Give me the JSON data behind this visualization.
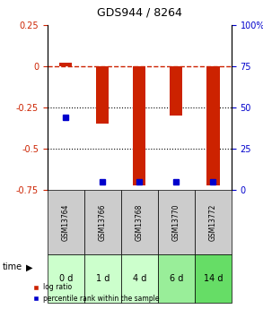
{
  "title": "GDS944 / 8264",
  "samples": [
    "GSM13764",
    "GSM13766",
    "GSM13768",
    "GSM13770",
    "GSM13772"
  ],
  "time_labels": [
    "0 d",
    "1 d",
    "4 d",
    "6 d",
    "14 d"
  ],
  "log_ratio": [
    0.02,
    -0.35,
    -0.72,
    -0.3,
    -0.72
  ],
  "percentile_rank": [
    44,
    5,
    5,
    5,
    5
  ],
  "ylim_left": [
    -0.75,
    0.25
  ],
  "ylim_right": [
    0,
    100
  ],
  "right_ticks": [
    0,
    25,
    50,
    75,
    100
  ],
  "left_ticks": [
    -0.75,
    -0.5,
    -0.25,
    0,
    0.25
  ],
  "bar_color": "#cc2200",
  "dot_color": "#0000cc",
  "dotted_lines": [
    -0.25,
    -0.5
  ],
  "sample_bg_color": "#cccccc",
  "time_bg_colors": [
    "#ccffcc",
    "#ccffcc",
    "#ccffcc",
    "#99ee99",
    "#66dd66"
  ],
  "bar_width": 0.35
}
